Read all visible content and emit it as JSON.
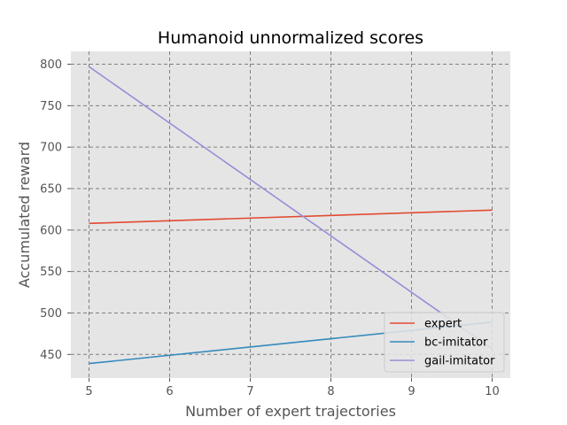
{
  "chart_data": {
    "type": "line",
    "title": "Humanoid unnormalized scores",
    "xlabel": "Number of expert trajectories",
    "ylabel": "Accumulated reward",
    "x": [
      5,
      10
    ],
    "xlim": [
      4.775,
      10.225
    ],
    "ylim": [
      421.5,
      815.5
    ],
    "xticks": [
      5,
      6,
      7,
      8,
      9,
      10
    ],
    "yticks": [
      450,
      500,
      550,
      600,
      650,
      700,
      750,
      800
    ],
    "grid": true,
    "legend_position": "lower right",
    "series": [
      {
        "name": "expert",
        "color": "#E24A33",
        "values": [
          608,
          624
        ]
      },
      {
        "name": "bc-imitator",
        "color": "#348ABD",
        "values": [
          439,
          489
        ]
      },
      {
        "name": "gail-imitator",
        "color": "#988ED5",
        "values": [
          797,
          457
        ]
      }
    ]
  }
}
